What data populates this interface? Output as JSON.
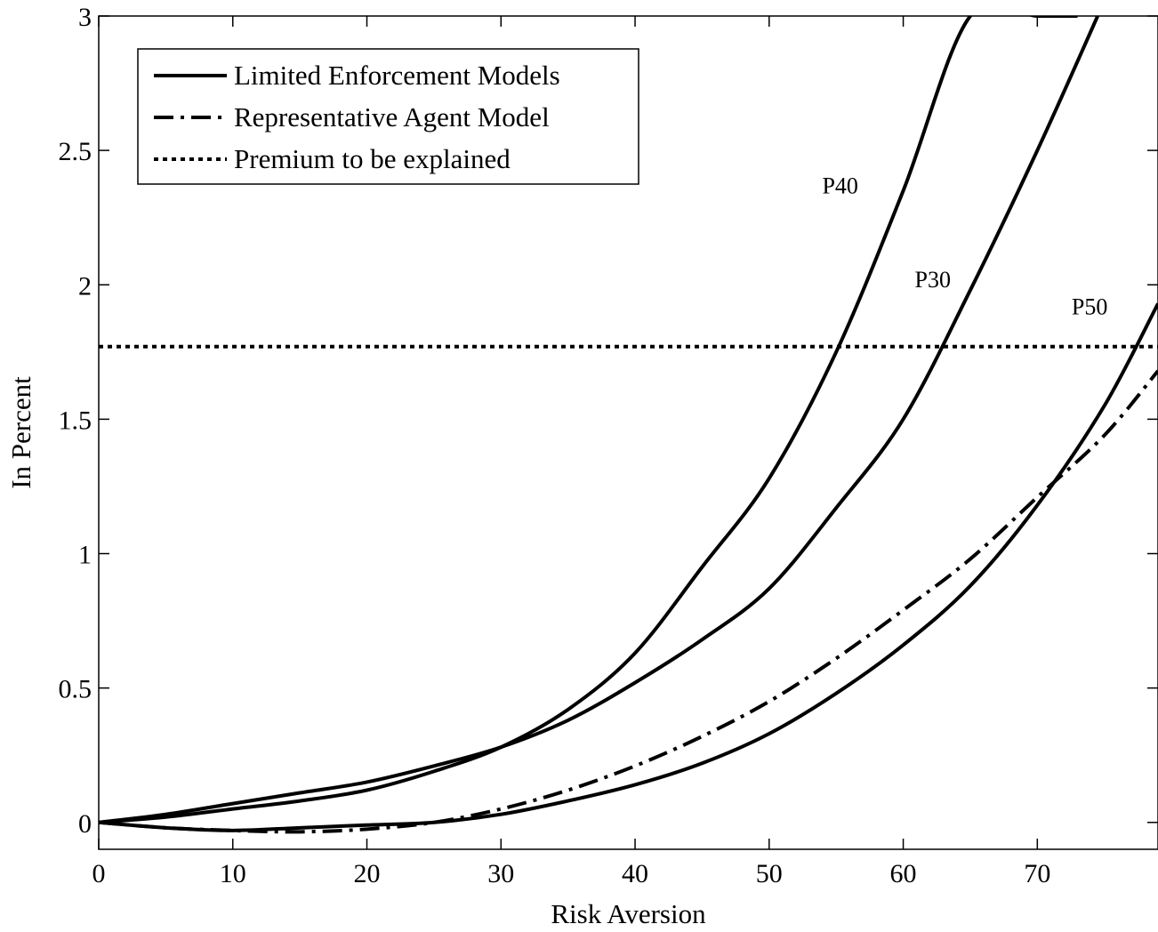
{
  "chart_data": {
    "type": "line",
    "title": "",
    "xlabel": "Risk Aversion",
    "ylabel": "In Percent",
    "xlim": [
      0,
      79
    ],
    "ylim": [
      -0.1,
      3
    ],
    "xticks": [
      0,
      10,
      20,
      30,
      40,
      50,
      60,
      70
    ],
    "yticks": [
      0,
      0.5,
      1,
      1.5,
      2,
      2.5,
      3
    ],
    "xtick_labels": [
      "0",
      "10",
      "20",
      "30",
      "40",
      "50",
      "60",
      "70"
    ],
    "ytick_labels": [
      "0",
      "0.5",
      "1",
      "1.5",
      "2",
      "2.5",
      "3"
    ],
    "grid": false,
    "legend": {
      "placement": "top-left",
      "entries": [
        {
          "label": "Limited Enforcement Models",
          "style": "solid"
        },
        {
          "label": "Representative Agent Model",
          "style": "dashdot"
        },
        {
          "label": "Premium to be explained",
          "style": "dotted"
        }
      ]
    },
    "series": [
      {
        "label": "P40",
        "style": "solid",
        "x": [
          0,
          5,
          10,
          15,
          20,
          25,
          30,
          35,
          40,
          45,
          50,
          55,
          60,
          65,
          70,
          73
        ],
        "y": [
          0,
          0.02,
          0.05,
          0.08,
          0.12,
          0.19,
          0.28,
          0.42,
          0.63,
          0.95,
          1.28,
          1.75,
          2.35,
          3.0,
          3.0,
          3.0
        ]
      },
      {
        "label": "P30",
        "style": "solid",
        "x": [
          0,
          5,
          10,
          15,
          20,
          25,
          30,
          35,
          40,
          45,
          50,
          55,
          60,
          65,
          70,
          74.5
        ],
        "y": [
          0,
          0.03,
          0.07,
          0.11,
          0.15,
          0.21,
          0.28,
          0.38,
          0.52,
          0.68,
          0.87,
          1.17,
          1.5,
          1.98,
          2.5,
          3.0
        ]
      },
      {
        "label": "P50",
        "style": "solid",
        "x": [
          0,
          5,
          10,
          15,
          20,
          25,
          30,
          35,
          40,
          45,
          50,
          55,
          60,
          65,
          70,
          75,
          79
        ],
        "y": [
          0,
          -0.02,
          -0.03,
          -0.02,
          -0.01,
          0.0,
          0.03,
          0.08,
          0.14,
          0.22,
          0.33,
          0.48,
          0.66,
          0.88,
          1.18,
          1.55,
          1.93
        ]
      },
      {
        "label": "Representative Agent Model",
        "style": "dashdot",
        "x": [
          0,
          5,
          10,
          15,
          20,
          25,
          30,
          35,
          40,
          45,
          50,
          55,
          60,
          65,
          70,
          75,
          79
        ],
        "y": [
          0,
          -0.02,
          -0.03,
          -0.035,
          -0.025,
          0.0,
          0.05,
          0.12,
          0.21,
          0.32,
          0.45,
          0.61,
          0.79,
          0.98,
          1.21,
          1.44,
          1.68
        ]
      },
      {
        "label": "Premium to be explained",
        "style": "dotted",
        "x": [
          0,
          79
        ],
        "y": [
          1.77,
          1.77
        ]
      }
    ],
    "annotations": [
      {
        "text": "P40",
        "x": 55.3,
        "y": 2.37
      },
      {
        "text": "P30",
        "x": 62.2,
        "y": 2.02
      },
      {
        "text": "P50",
        "x": 73.9,
        "y": 1.92
      }
    ]
  }
}
